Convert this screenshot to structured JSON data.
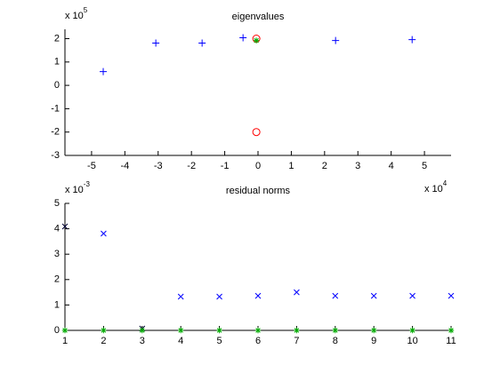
{
  "chart_data": [
    {
      "type": "scatter",
      "title": "eigenvalues",
      "xlim": [
        -5.8,
        5.8
      ],
      "ylim": [
        -3,
        2.4
      ],
      "xticks": [
        -5,
        -4,
        -3,
        -2,
        -1,
        0,
        1,
        2,
        3,
        4,
        5
      ],
      "yticks": [
        -3,
        -2,
        -1,
        0,
        1,
        2
      ],
      "x_exponent": {
        "base": "x 10",
        "exponent": "4"
      },
      "y_exponent": {
        "base": "x 10",
        "exponent": "5"
      },
      "series": [
        {
          "color": "#0000ff",
          "marker": "+",
          "x": [
            -4.65,
            -3.07,
            -1.68,
            -0.45,
            2.33,
            4.63
          ],
          "values": [
            0.59,
            1.81,
            1.81,
            2.04,
            1.92,
            1.96
          ]
        },
        {
          "color": "#ff0000",
          "marker": "o",
          "x": [
            -0.05,
            -0.05
          ],
          "values": [
            2.0,
            -2.0
          ]
        },
        {
          "color": "#00aa00",
          "marker": "*",
          "x": [
            -0.05
          ],
          "values": [
            1.92
          ]
        }
      ]
    },
    {
      "type": "scatter",
      "title": "residual norms",
      "xlim": [
        1,
        11
      ],
      "ylim": [
        0,
        5
      ],
      "xticks": [
        1,
        2,
        3,
        4,
        5,
        6,
        7,
        8,
        9,
        10,
        11
      ],
      "yticks": [
        0,
        1,
        2,
        3,
        4,
        5
      ],
      "y_exponent": {
        "base": "x 10",
        "exponent": "-3"
      },
      "series": [
        {
          "color": "#0000ff",
          "marker": "x",
          "x": [
            2,
            4,
            5,
            6,
            7,
            8,
            9,
            10,
            11
          ],
          "values": [
            3.81,
            1.33,
            1.33,
            1.36,
            1.5,
            1.36,
            1.36,
            1.36,
            1.36
          ]
        },
        {
          "color": "#000033",
          "marker": "x",
          "x": [
            1,
            3
          ],
          "values": [
            4.09,
            0.07
          ]
        },
        {
          "color": "#00aa00",
          "marker": "*",
          "x": [
            1,
            2,
            3,
            4,
            5,
            6,
            7,
            8,
            9,
            10,
            11
          ],
          "values": [
            0,
            0,
            0,
            0,
            0,
            0,
            0,
            0,
            0,
            0,
            0
          ]
        }
      ]
    }
  ]
}
